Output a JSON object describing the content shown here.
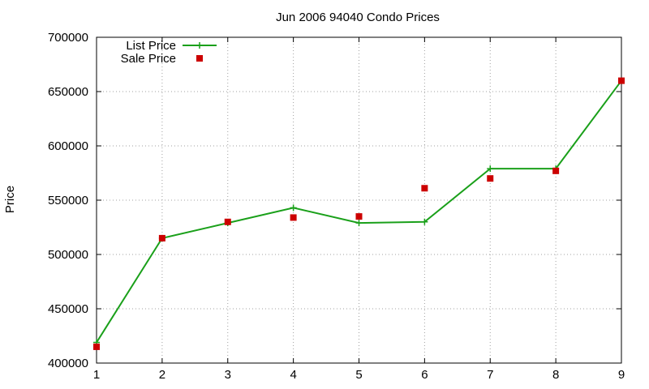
{
  "chart_data": {
    "type": "line",
    "title": "Jun 2006 94040 Condo Prices",
    "xlabel": "",
    "ylabel": "Price",
    "x": [
      1,
      2,
      3,
      4,
      5,
      6,
      7,
      8,
      9
    ],
    "xlim": [
      1,
      9
    ],
    "ylim": [
      400000,
      700000
    ],
    "xticks": [
      1,
      2,
      3,
      4,
      5,
      6,
      7,
      8,
      9
    ],
    "yticks": [
      400000,
      450000,
      500000,
      550000,
      600000,
      650000,
      700000
    ],
    "grid": true,
    "legend_position": "top-left",
    "series": [
      {
        "name": "List Price",
        "style": "linespoints",
        "marker": "plus",
        "color": "#1aa01a",
        "values": [
          419000,
          515000,
          529000,
          543000,
          529000,
          530000,
          579000,
          579000,
          660000
        ]
      },
      {
        "name": "Sale Price",
        "style": "points",
        "marker": "square",
        "color": "#cc0000",
        "values": [
          415000,
          515000,
          530000,
          534000,
          535000,
          561000,
          570000,
          577000,
          660000
        ]
      }
    ]
  }
}
